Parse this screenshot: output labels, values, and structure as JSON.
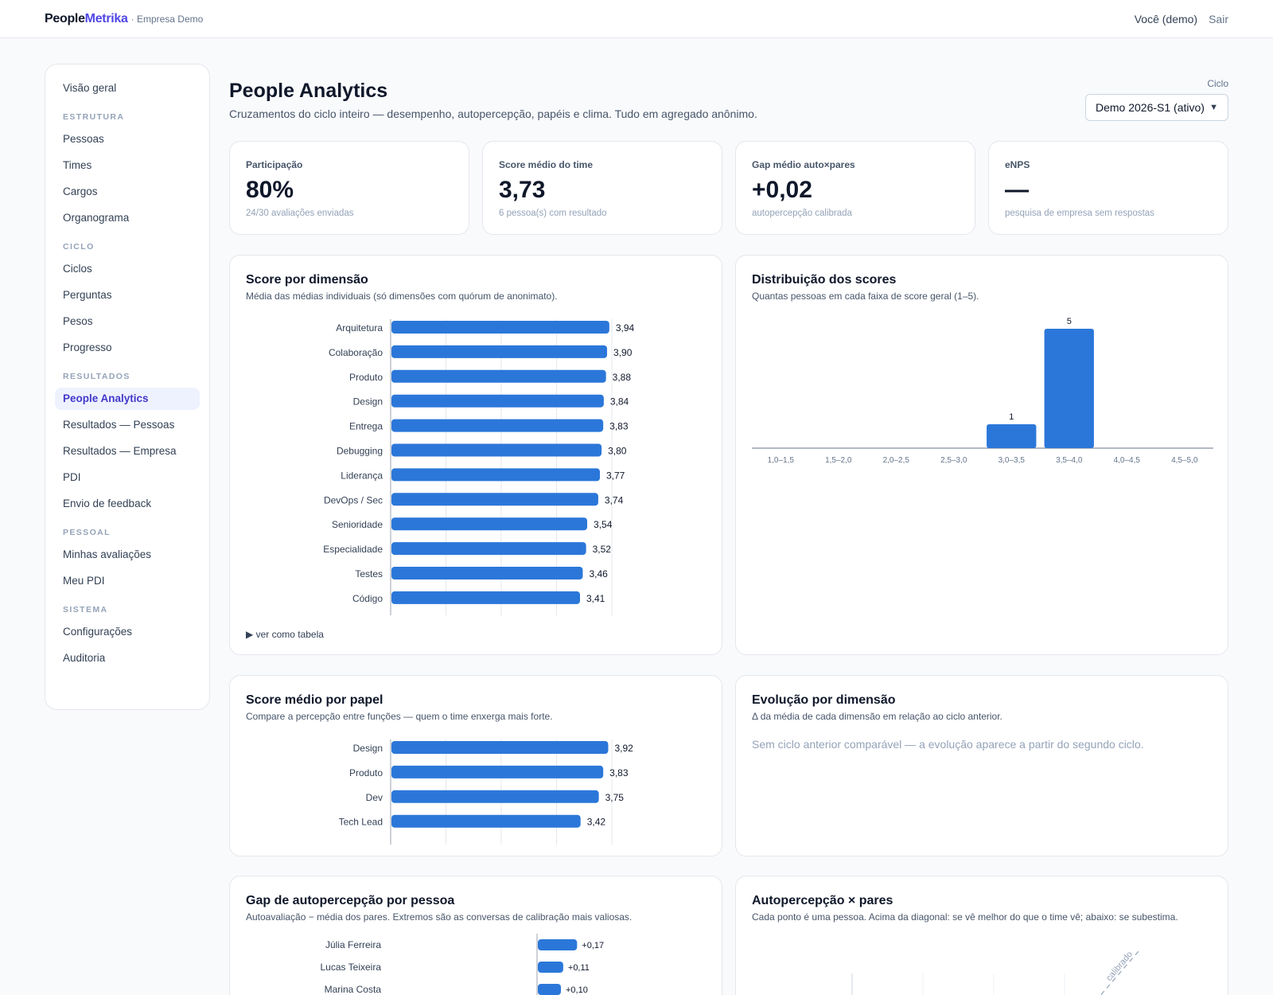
{
  "brand": {
    "name_part1": "People",
    "name_part2": "Metrika",
    "org": "· Empresa Demo"
  },
  "user": {
    "name": "Você (demo)",
    "logout": "Sair"
  },
  "sidebar": {
    "overview": "Visão geral",
    "sections": [
      {
        "title": "ESTRUTURA",
        "items": [
          "Pessoas",
          "Times",
          "Cargos",
          "Organograma"
        ]
      },
      {
        "title": "CICLO",
        "items": [
          "Ciclos",
          "Perguntas",
          "Pesos",
          "Progresso"
        ]
      },
      {
        "title": "RESULTADOS",
        "items": [
          "People Analytics",
          "Resultados — Pessoas",
          "Resultados — Empresa",
          "PDI",
          "Envio de feedback"
        ]
      },
      {
        "title": "PESSOAL",
        "items": [
          "Minhas avaliações",
          "Meu PDI"
        ]
      },
      {
        "title": "SISTEMA",
        "items": [
          "Configurações",
          "Auditoria"
        ]
      }
    ],
    "active": "People Analytics"
  },
  "page": {
    "title": "People Analytics",
    "subtitle": "Cruzamentos do ciclo inteiro — desempenho, autopercepção, papéis e clima. Tudo em agregado anônimo.",
    "cycle_label": "Ciclo",
    "cycle_value": "Demo 2026-S1 (ativo)"
  },
  "kpis": [
    {
      "label": "Participação",
      "value": "80%",
      "sub": "24/30 avaliações enviadas"
    },
    {
      "label": "Score médio do time",
      "value": "3,73",
      "sub": "6 pessoa(s) com resultado"
    },
    {
      "label": "Gap médio auto×pares",
      "value": "+0,02",
      "sub": "autopercepção calibrada"
    },
    {
      "label": "eNPS",
      "value": "—",
      "sub": "pesquisa de empresa sem respostas"
    }
  ],
  "cards": {
    "dimension": {
      "title": "Score por dimensão",
      "subtitle": "Média das médias individuais (só dimensões com quórum de anonimato).",
      "toggle": "▶ ver como tabela"
    },
    "distribution": {
      "title": "Distribuição dos scores",
      "subtitle": "Quantas pessoas em cada faixa de score geral (1–5)."
    },
    "role": {
      "title": "Score médio por papel",
      "subtitle": "Compare a percepção entre funções — quem o time enxerga mais forte."
    },
    "evolution": {
      "title": "Evolução por dimensão",
      "subtitle": "Δ da média de cada dimensão em relação ao ciclo anterior.",
      "empty": "Sem ciclo anterior comparável — a evolução aparece a partir do segundo ciclo."
    },
    "gap": {
      "title": "Gap de autopercepção por pessoa",
      "subtitle": "Autoavaliação − média dos pares. Extremos são as conversas de calibração mais valiosas."
    },
    "scatter": {
      "title": "Autopercepção × pares",
      "subtitle": "Cada ponto é uma pessoa. Acima da diagonal: se vê melhor do que o time vê; abaixo: se subestima.",
      "diag_label": "calibrado"
    }
  },
  "chart_data": [
    {
      "id": "dimension",
      "type": "bar",
      "orientation": "horizontal",
      "categories": [
        "Arquitetura",
        "Colaboração",
        "Produto",
        "Design",
        "Entrega",
        "Debugging",
        "Liderança",
        "DevOps / Sec",
        "Senioridade",
        "Especialidade",
        "Testes",
        "Código"
      ],
      "values": [
        3.94,
        3.9,
        3.88,
        3.84,
        3.83,
        3.8,
        3.77,
        3.74,
        3.54,
        3.52,
        3.46,
        3.41
      ],
      "labels": [
        "3,94",
        "3,90",
        "3,88",
        "3,84",
        "3,83",
        "3,80",
        "3,77",
        "3,74",
        "3,54",
        "3,52",
        "3,46",
        "3,41"
      ],
      "color": "#2b77d9",
      "xlim": [
        0,
        4
      ]
    },
    {
      "id": "distribution",
      "type": "bar",
      "categories": [
        "1,0–1,5",
        "1,5–2,0",
        "2,0–2,5",
        "2,5–3,0",
        "3,0–3,5",
        "3,5–4,0",
        "4,0–4,5",
        "4,5–5,0"
      ],
      "values": [
        0,
        0,
        0,
        0,
        1,
        5,
        0,
        0
      ],
      "color": "#2b77d9",
      "ylim": [
        0,
        5
      ]
    },
    {
      "id": "role",
      "type": "bar",
      "orientation": "horizontal",
      "categories": [
        "Design",
        "Produto",
        "Dev",
        "Tech Lead"
      ],
      "values": [
        3.92,
        3.83,
        3.75,
        3.42
      ],
      "labels": [
        "3,92",
        "3,83",
        "3,75",
        "3,42"
      ],
      "color": "#2b77d9",
      "xlim": [
        0,
        4
      ]
    },
    {
      "id": "gap",
      "type": "bar",
      "orientation": "horizontal",
      "categories": [
        "Júlia Ferreira",
        "Lucas Teixeira",
        "Marina Costa"
      ],
      "values": [
        0.17,
        0.11,
        0.1
      ],
      "labels": [
        "+0,17",
        "+0,11",
        "+0,10"
      ],
      "color": "#2b77d9"
    }
  ]
}
